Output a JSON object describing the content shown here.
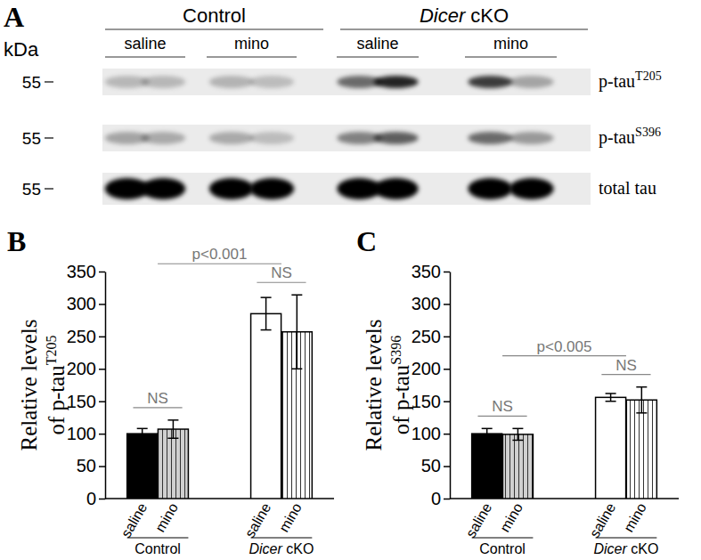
{
  "chart_data": [
    {
      "type": "bar",
      "panel": "B",
      "categories": [
        "saline",
        "mino",
        "saline",
        "mino"
      ],
      "groups": [
        {
          "label": "Control"
        },
        {
          "label": "Dicer cKO",
          "italic": "Dicer"
        }
      ],
      "values": [
        100,
        107,
        285,
        257
      ],
      "errors": [
        8,
        14,
        25,
        57
      ],
      "colors": [
        "#000000",
        "#d0d0d0",
        "#ffffff",
        "#ffffff"
      ],
      "ylabel": [
        "Relative levels",
        "of p-tau"
      ],
      "ylabel_superscript": "T205",
      "ylim": [
        0,
        350
      ],
      "yticks": [
        0,
        50,
        100,
        150,
        200,
        250,
        300,
        350
      ],
      "annotations": [
        {
          "text": "NS",
          "from": 0,
          "to": 1
        },
        {
          "text": "NS",
          "from": 2,
          "to": 3
        },
        {
          "text": "p<0.001",
          "from": 0.5,
          "to": 2.5
        }
      ]
    },
    {
      "type": "bar",
      "panel": "C",
      "categories": [
        "saline",
        "mino",
        "saline",
        "mino"
      ],
      "groups": [
        {
          "label": "Control"
        },
        {
          "label": "Dicer cKO",
          "italic": "Dicer"
        }
      ],
      "values": [
        100,
        99,
        156,
        152
      ],
      "errors": [
        8,
        9,
        6,
        20
      ],
      "colors": [
        "#000000",
        "#d0d0d0",
        "#ffffff",
        "#ffffff"
      ],
      "ylabel": [
        "Relative levels",
        "of p-tau"
      ],
      "ylabel_superscript": "S396",
      "ylim": [
        0,
        350
      ],
      "yticks": [
        0,
        50,
        100,
        150,
        200,
        250,
        300,
        350
      ],
      "annotations": [
        {
          "text": "NS",
          "from": 0,
          "to": 1
        },
        {
          "text": "NS",
          "from": 2,
          "to": 3
        },
        {
          "text": "p<0.005",
          "from": 0.5,
          "to": 2.5
        }
      ]
    }
  ],
  "blot": {
    "panel": "A",
    "unit": "kDa",
    "groups": [
      {
        "label": "Control"
      },
      {
        "label": "Dicer cKO",
        "italic": "Dicer"
      }
    ],
    "conditions": [
      "saline",
      "mino",
      "saline",
      "mino"
    ],
    "rows": [
      {
        "size": "55",
        "label": "p-tau",
        "superscript": "T205",
        "intensity": [
          0.22,
          0.22,
          0.24,
          0.2,
          0.55,
          0.85,
          0.75,
          0.3
        ]
      },
      {
        "size": "55",
        "label": "p-tau",
        "superscript": "S396",
        "intensity": [
          0.3,
          0.28,
          0.28,
          0.2,
          0.45,
          0.6,
          0.55,
          0.35
        ]
      },
      {
        "size": "55",
        "label": "total tau",
        "intensity": [
          1,
          1,
          1,
          1,
          1,
          1,
          1,
          1
        ]
      }
    ]
  }
}
